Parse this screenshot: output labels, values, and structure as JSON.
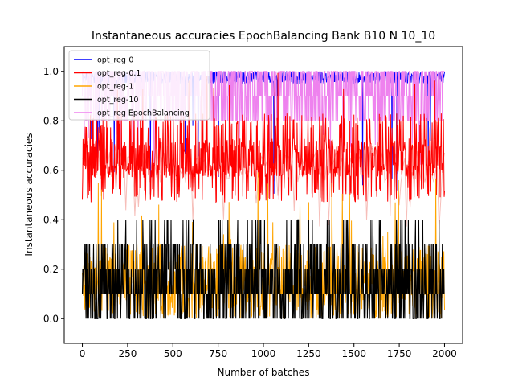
{
  "chart_data": {
    "type": "line",
    "title": "Instantaneous accuracies EpochBalancing Bank B10 N 10_10",
    "xlabel": "Number of batches",
    "ylabel": "Instantaneous accuracies",
    "xlim": [
      -100,
      2100
    ],
    "ylim": [
      -0.1,
      1.1
    ],
    "x_ticks": [
      0,
      250,
      500,
      750,
      1000,
      1250,
      1500,
      1750,
      2000
    ],
    "y_ticks": [
      0.0,
      0.2,
      0.4,
      0.6,
      0.8,
      1.0
    ],
    "grid": false,
    "legend_position": "top-left",
    "n_batches": 2000,
    "series": [
      {
        "name": "opt_reg-0",
        "color": "#0000ff",
        "typical_range": [
          0.8,
          1.0
        ],
        "occasional_min": 0.5
      },
      {
        "name": "opt_reg-0.1",
        "color": "#ff0000",
        "typical_range": [
          0.5,
          0.8
        ],
        "occasional_max": 1.0
      },
      {
        "name": "opt_reg-1",
        "color": "#ffa500",
        "typical_range": [
          0.0,
          0.3
        ],
        "occasional_max": 0.6
      },
      {
        "name": "opt_reg-10",
        "color": "#000000",
        "typical_range": [
          0.0,
          0.3
        ],
        "occasional_max": 0.4
      },
      {
        "name": "opt_reg EpochBalancing",
        "color": "#ee82ee",
        "typical_range": [
          0.8,
          1.0
        ],
        "occasional_min": 0.6
      }
    ],
    "shaded_band": {
      "color": "#f5b7b1",
      "range": [
        0.4,
        1.0
      ]
    }
  }
}
